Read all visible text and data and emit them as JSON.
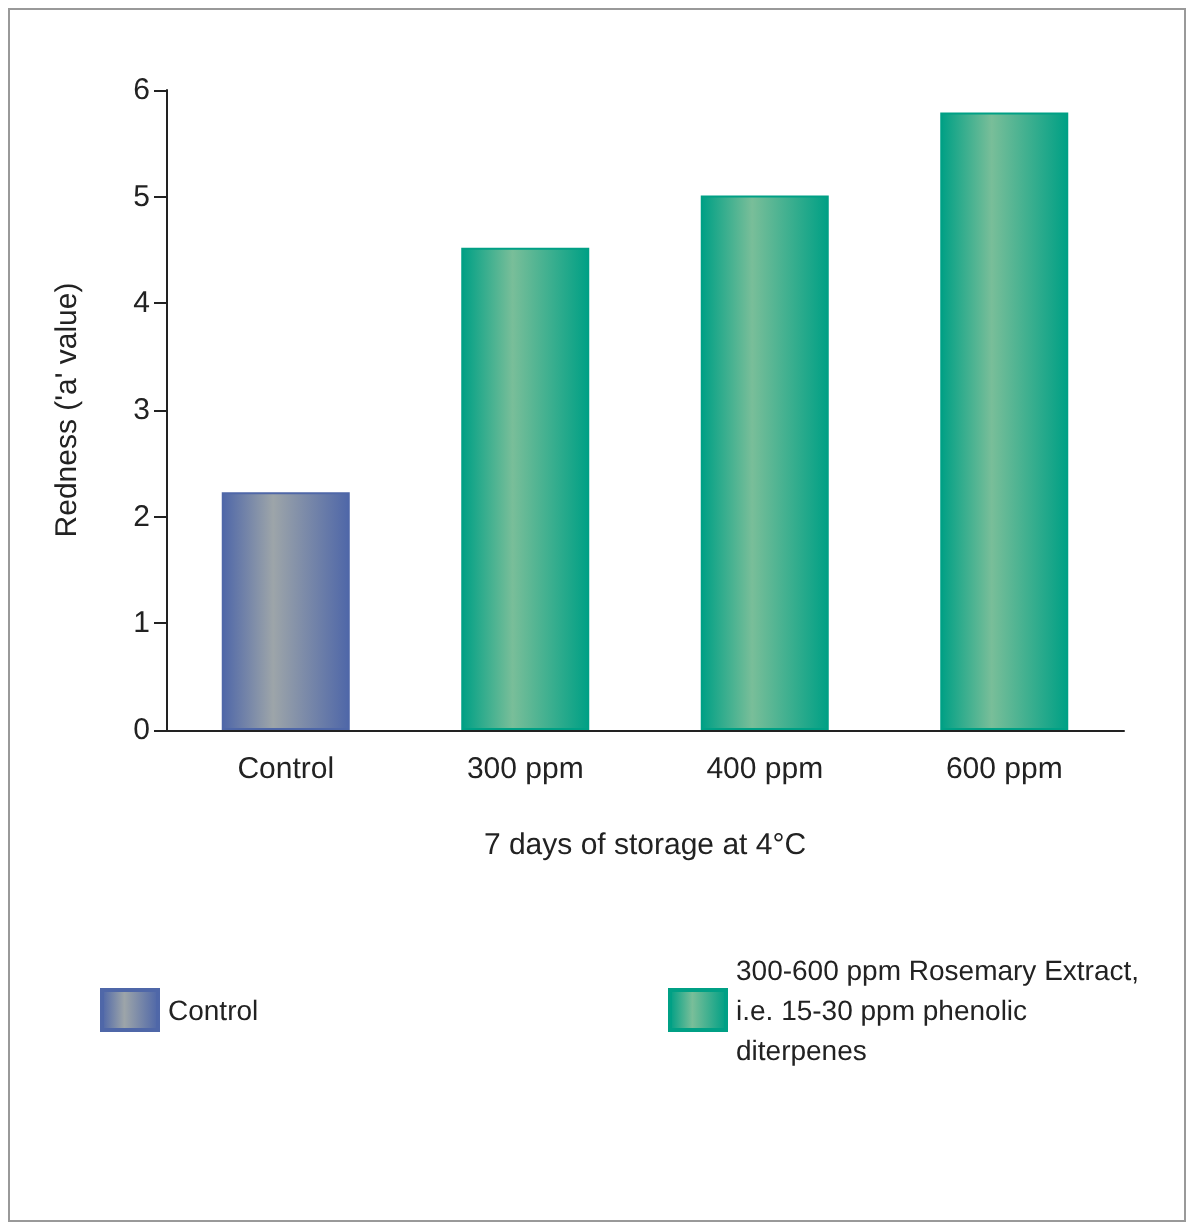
{
  "chart_data": {
    "type": "bar",
    "xlabel": "7 days of storage at 4°C",
    "ylabel": "Redness ('a' value)",
    "categories": [
      "Control",
      "300 ppm",
      "400 ppm",
      "600 ppm"
    ],
    "series": [
      {
        "name": "Control",
        "color": "#4f67a8",
        "values": [
          2.23,
          null,
          null,
          null
        ]
      },
      {
        "name": "300-600 ppm Rosemary Extract, i.e. 15-30 ppm phenolic diterpenes",
        "color": "#00a085",
        "values": [
          null,
          4.52,
          5.01,
          5.79
        ]
      }
    ],
    "ylim": [
      0,
      6
    ],
    "yticks": [
      0,
      1,
      2,
      3,
      4,
      5,
      6
    ],
    "grid": false,
    "legend": "bottom"
  }
}
